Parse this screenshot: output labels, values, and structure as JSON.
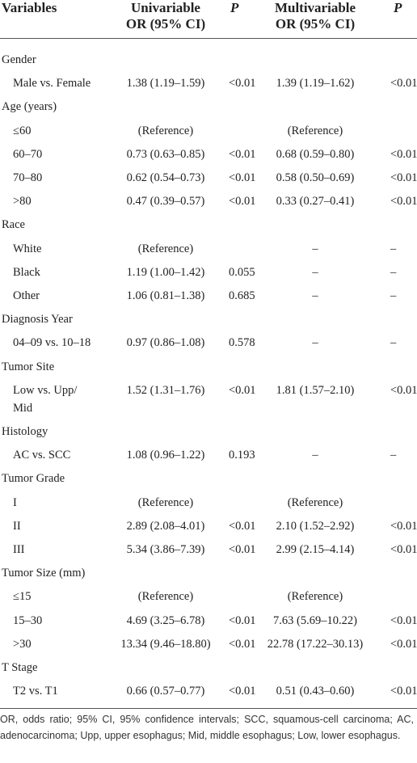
{
  "header": {
    "variables": "Variables",
    "univariable": [
      "Univariable",
      "OR (95% CI)"
    ],
    "p1": "P",
    "multivariable": [
      "Multivariable",
      "OR (95% CI)"
    ],
    "p2": "P"
  },
  "rows": [
    {
      "label": [
        "Gender"
      ]
    },
    {
      "label": [
        "Male vs. Female"
      ],
      "uni": "1.38 (1.19–1.59)",
      "p1": "<0.01",
      "multi": "1.39 (1.19–1.62)",
      "p2": "<0.01"
    },
    {
      "label": [
        "Age (years)"
      ]
    },
    {
      "label": [
        "≤60"
      ],
      "uni": "(Reference)",
      "multi": "(Reference)"
    },
    {
      "label": [
        "60–70"
      ],
      "uni": "0.73 (0.63–0.85)",
      "p1": "<0.01",
      "multi": "0.68 (0.59–0.80)",
      "p2": "<0.01"
    },
    {
      "label": [
        "70–80"
      ],
      "uni": "0.62 (0.54–0.73)",
      "p1": "<0.01",
      "multi": "0.58 (0.50–0.69)",
      "p2": "<0.01"
    },
    {
      "label": [
        ">80"
      ],
      "uni": "0.47 (0.39–0.57)",
      "p1": "<0.01",
      "multi": "0.33 (0.27–0.41)",
      "p2": "<0.01"
    },
    {
      "label": [
        "Race"
      ]
    },
    {
      "label": [
        "White"
      ],
      "uni": "(Reference)",
      "multi": "–",
      "p2": "–"
    },
    {
      "label": [
        "Black"
      ],
      "uni": "1.19 (1.00–1.42)",
      "p1": "0.055",
      "multi": "–",
      "p2": "–"
    },
    {
      "label": [
        "Other"
      ],
      "uni": "1.06 (0.81–1.38)",
      "p1": "0.685",
      "multi": "–",
      "p2": "–"
    },
    {
      "label": [
        "Diagnosis Year"
      ]
    },
    {
      "label": [
        "04–09 vs. 10–18"
      ],
      "uni": "0.97 (0.86–1.08)",
      "p1": "0.578",
      "multi": "–",
      "p2": "–"
    },
    {
      "label": [
        "Tumor Site"
      ]
    },
    {
      "label": [
        "Low vs. Upp/",
        "Mid"
      ],
      "uni": "1.52 (1.31–1.76)",
      "p1": "<0.01",
      "multi": "1.81 (1.57–2.10)",
      "p2": "<0.01"
    },
    {
      "label": [
        "Histology"
      ]
    },
    {
      "label": [
        "AC vs. SCC"
      ],
      "uni": "1.08 (0.96–1.22)",
      "p1": "0.193",
      "multi": "–",
      "p2": "–"
    },
    {
      "label": [
        "Tumor Grade"
      ]
    },
    {
      "label": [
        "I"
      ],
      "uni": "(Reference)",
      "multi": "(Reference)"
    },
    {
      "label": [
        "II"
      ],
      "uni": "2.89 (2.08–4.01)",
      "p1": "<0.01",
      "multi": "2.10 (1.52–2.92)",
      "p2": "<0.01"
    },
    {
      "label": [
        "III"
      ],
      "uni": "5.34 (3.86–7.39)",
      "p1": "<0.01",
      "multi": "2.99 (2.15–4.14)",
      "p2": "<0.01"
    },
    {
      "label": [
        "Tumor Size (mm)"
      ]
    },
    {
      "label": [
        "≤15"
      ],
      "uni": "(Reference)",
      "multi": "(Reference)"
    },
    {
      "label": [
        "15–30"
      ],
      "uni": "4.69 (3.25–6.78)",
      "p1": "<0.01",
      "multi": "7.63 (5.69–10.22)",
      "p2": "<0.01"
    },
    {
      "label": [
        ">30"
      ],
      "uni": "13.34 (9.46–18.80)",
      "p1": "<0.01",
      "multi": "22.78 (17.22–30.13)",
      "p2": "<0.01"
    },
    {
      "label": [
        "T Stage"
      ]
    },
    {
      "label": [
        "T2 vs. T1"
      ],
      "uni": "0.66 (0.57–0.77)",
      "p1": "<0.01",
      "multi": "0.51 (0.43–0.60)",
      "p2": "<0.01"
    }
  ],
  "footnote": "OR, odds ratio; 95% CI, 95% confidence intervals; SCC, squamous-cell carcinoma; AC, adenocarcinoma; Upp, upper esophagus; Mid, middle esophagus; Low, lower esophagus."
}
